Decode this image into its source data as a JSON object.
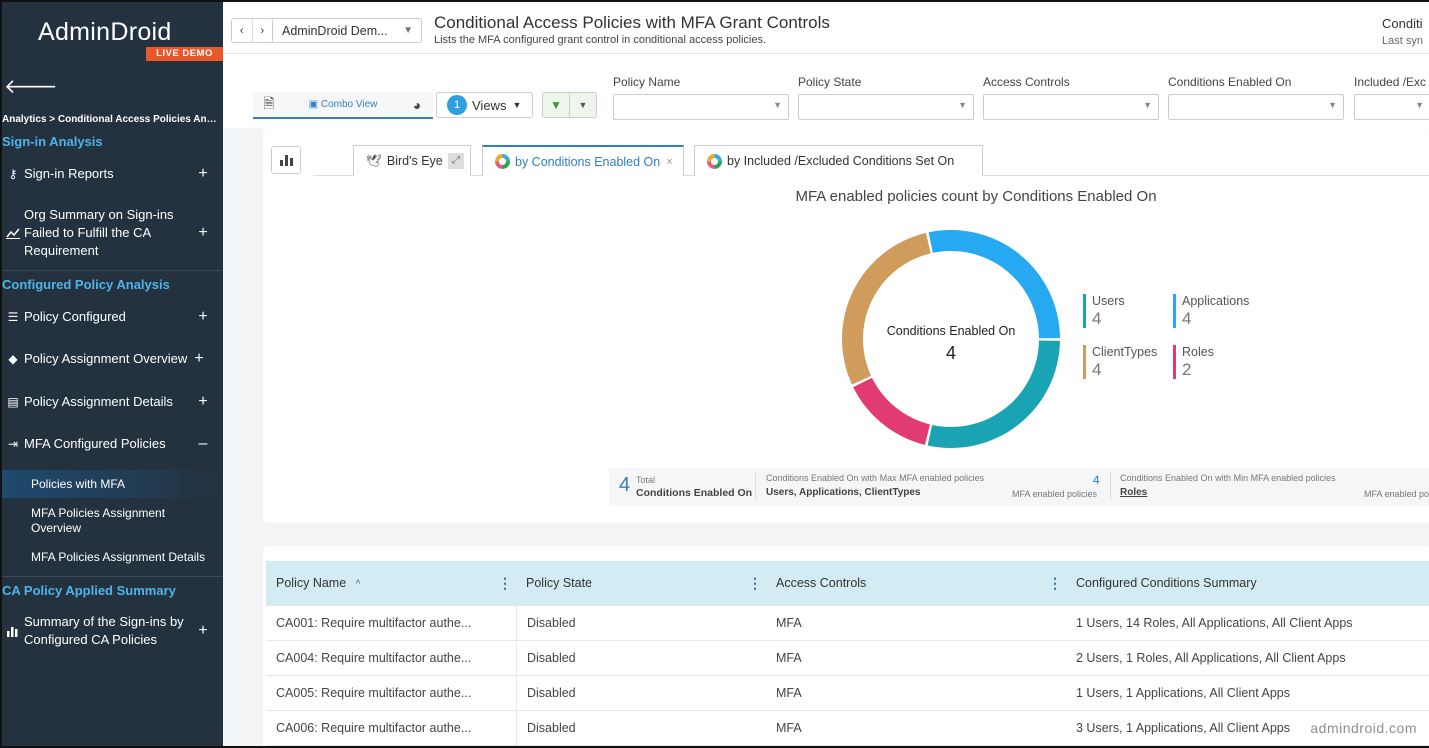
{
  "sidebar": {
    "logo": "AdminDroid",
    "badge": "LIVE DEMO",
    "breadcrumb": "Analytics > Conditional Access Policies Ana...",
    "section_signin": "Sign-in Analysis",
    "section_configured": "Configured Policy Analysis",
    "section_applied": "CA Policy Applied Summary",
    "item_signin_reports": "Sign-in Reports",
    "item_org_summary": "Org Summary on Sign-ins Failed to Fulfill the CA Requirement",
    "item_policy_configured": "Policy Configured",
    "item_policy_assignment_overview": "Policy Assignment Overview",
    "item_policy_assignment_details": "Policy Assignment Details",
    "item_mfa_configured": "MFA Configured Policies",
    "sub_policies_with_mfa": "Policies with MFA",
    "sub_mfa_assignment_overview": "MFA Policies Assignment Overview",
    "sub_mfa_assignment_details": "MFA Policies Assignment Details",
    "item_summary_signins": "Summary of the Sign-ins by Configured CA Policies",
    "plus": "+",
    "minus": "–"
  },
  "header": {
    "tenant": "AdminDroid Dem...",
    "title": "Conditional Access Policies with MFA Grant Controls",
    "subtitle": "Lists the MFA configured grant control in conditional access policies.",
    "right_title": "Conditi",
    "right_sub": "Last syn"
  },
  "toolbar": {
    "combo_view": "Combo View",
    "views_count": "1",
    "views_label": "Views",
    "filters": [
      "Policy Name",
      "Policy State",
      "Access Controls",
      "Conditions Enabled On",
      "Included /Exc"
    ]
  },
  "tabs": {
    "birds_eye": "Bird's Eye",
    "tab1": "by Conditions Enabled On",
    "tab2": "by Included /Excluded Conditions Set On"
  },
  "chart": {
    "title": "MFA enabled policies count by Conditions Enabled On",
    "center_label": "Conditions Enabled On",
    "center_value": "4"
  },
  "chart_data": {
    "type": "pie",
    "title": "MFA enabled policies count by Conditions Enabled On",
    "categories": [
      "Users",
      "Applications",
      "ClientTypes",
      "Roles"
    ],
    "values": [
      4,
      4,
      4,
      2
    ],
    "colors": [
      "#1aa3b3",
      "#26a9f0",
      "#d09c5c",
      "#e23b72"
    ],
    "legend": "right"
  },
  "summary": {
    "total_value": "4",
    "total_label_1": "Total",
    "total_label_2": "Conditions Enabled On",
    "max_label": "Conditions Enabled On with Max MFA enabled policies",
    "max_value": "Users, Applications, ClientTypes",
    "max_count": "4",
    "max_count_label": "MFA enabled policies",
    "min_label": "Conditions Enabled On with Min MFA enabled policies",
    "min_value": "Roles",
    "min_count_label": "MFA enabled po"
  },
  "table": {
    "columns": [
      "Policy Name",
      "Policy State",
      "Access Controls",
      "Configured Conditions Summary"
    ],
    "rows": [
      [
        "CA001: Require multifactor authe...",
        "Disabled",
        "MFA",
        "1 Users, 14 Roles, All Applications, All Client Apps"
      ],
      [
        "CA004: Require multifactor authe...",
        "Disabled",
        "MFA",
        "2 Users, 1 Roles, All Applications, All Client Apps"
      ],
      [
        "CA005: Require multifactor authe...",
        "Disabled",
        "MFA",
        "1 Users, 1 Applications, All Client Apps"
      ],
      [
        "CA006: Require multifactor authe...",
        "Disabled",
        "MFA",
        "3 Users, 1 Applications, All Client Apps"
      ]
    ]
  },
  "watermark": "admindroid.com"
}
